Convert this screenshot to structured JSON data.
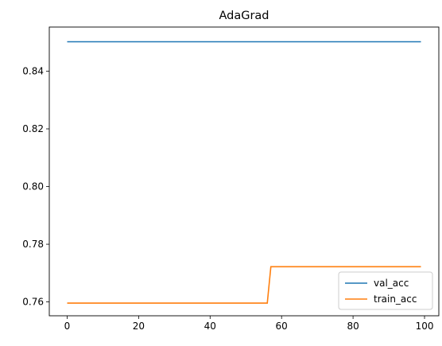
{
  "chart_data": {
    "type": "line",
    "title": "AdaGrad",
    "xlabel": "",
    "ylabel": "",
    "xlim": [
      -5,
      104
    ],
    "ylim": [
      0.7552,
      0.8553
    ],
    "x_ticks": [
      0,
      20,
      40,
      60,
      80,
      100
    ],
    "y_ticks": [
      0.76,
      0.78,
      0.8,
      0.82,
      0.84
    ],
    "grid": false,
    "legend": "lower-right",
    "series": [
      {
        "name": "val_acc",
        "color": "#1f77b4",
        "points": [
          [
            0,
            0.8502
          ],
          [
            99,
            0.8502
          ]
        ]
      },
      {
        "name": "train_acc",
        "color": "#ff7f0e",
        "points": [
          [
            0,
            0.7596
          ],
          [
            56,
            0.7596
          ],
          [
            57,
            0.7722
          ],
          [
            99,
            0.7722
          ]
        ]
      }
    ]
  }
}
